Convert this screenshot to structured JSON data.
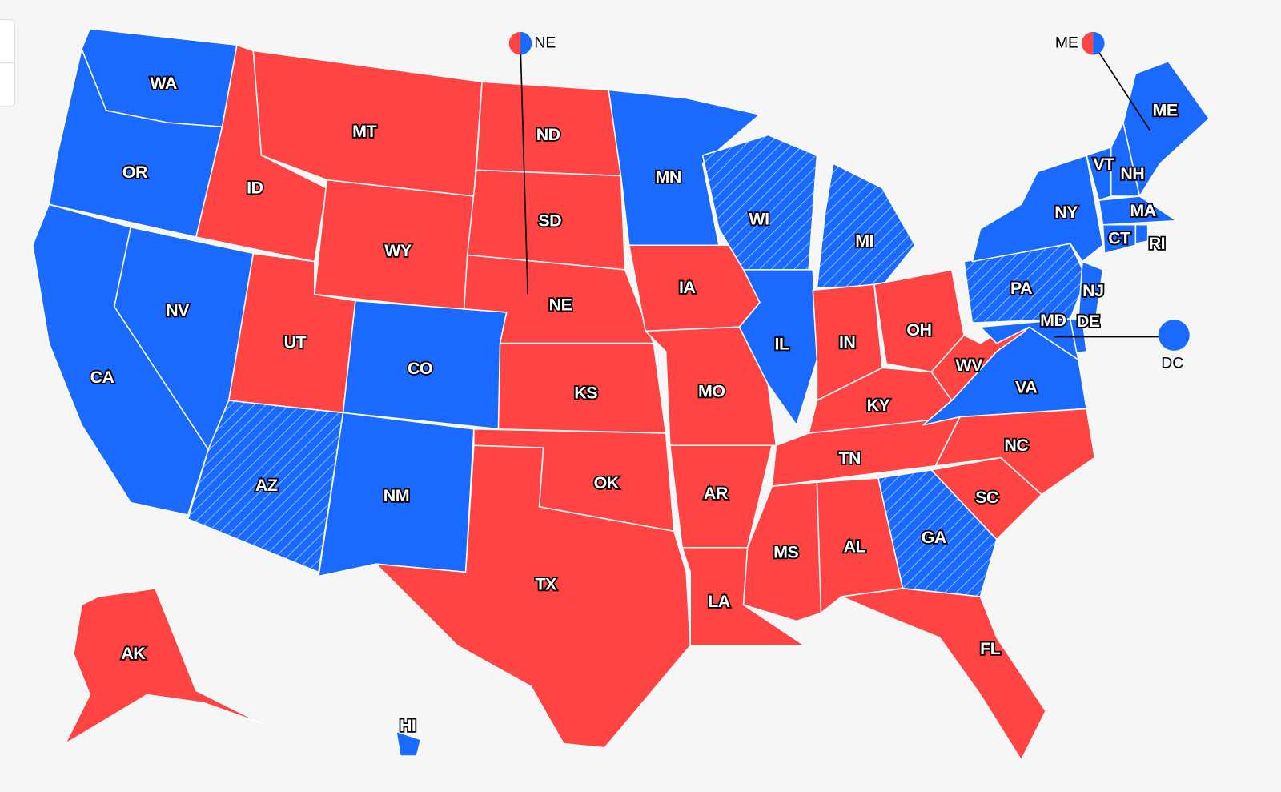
{
  "states": [
    {
      "label": "WA",
      "color": "#1a6aff",
      "hatched": false
    },
    {
      "label": "OR",
      "color": "#1a6aff",
      "hatched": false
    },
    {
      "label": "CA",
      "color": "#1a6aff",
      "hatched": false
    },
    {
      "label": "NV",
      "color": "#1a6aff",
      "hatched": false
    },
    {
      "label": "ID",
      "color": "#ff4444",
      "hatched": false
    },
    {
      "label": "MT",
      "color": "#ff4444",
      "hatched": false
    },
    {
      "label": "WY",
      "color": "#ff4444",
      "hatched": false
    },
    {
      "label": "UT",
      "color": "#ff4444",
      "hatched": false
    },
    {
      "label": "CO",
      "color": "#1a6aff",
      "hatched": false
    },
    {
      "label": "AZ",
      "color": "#1a6aff",
      "hatched": true
    },
    {
      "label": "NM",
      "color": "#1a6aff",
      "hatched": false
    },
    {
      "label": "ND",
      "color": "#ff4444",
      "hatched": false
    },
    {
      "label": "SD",
      "color": "#ff4444",
      "hatched": false
    },
    {
      "label": "NE",
      "color": "#ff4444",
      "hatched": false
    },
    {
      "label": "KS",
      "color": "#ff4444",
      "hatched": false
    },
    {
      "label": "OK",
      "color": "#ff4444",
      "hatched": false
    },
    {
      "label": "TX",
      "color": "#ff4444",
      "hatched": false
    },
    {
      "label": "MN",
      "color": "#1a6aff",
      "hatched": false
    },
    {
      "label": "IA",
      "color": "#ff4444",
      "hatched": false
    },
    {
      "label": "MO",
      "color": "#ff4444",
      "hatched": false
    },
    {
      "label": "AR",
      "color": "#ff4444",
      "hatched": false
    },
    {
      "label": "LA",
      "color": "#ff4444",
      "hatched": false
    },
    {
      "label": "WI",
      "color": "#1a6aff",
      "hatched": true
    },
    {
      "label": "IL",
      "color": "#1a6aff",
      "hatched": false
    },
    {
      "label": "MI",
      "color": "#1a6aff",
      "hatched": true
    },
    {
      "label": "IN",
      "color": "#ff4444",
      "hatched": false
    },
    {
      "label": "OH",
      "color": "#ff4444",
      "hatched": false
    },
    {
      "label": "KY",
      "color": "#ff4444",
      "hatched": false
    },
    {
      "label": "TN",
      "color": "#ff4444",
      "hatched": false
    },
    {
      "label": "MS",
      "color": "#ff4444",
      "hatched": false
    },
    {
      "label": "AL",
      "color": "#ff4444",
      "hatched": false
    },
    {
      "label": "GA",
      "color": "#1a6aff",
      "hatched": true
    },
    {
      "label": "FL",
      "color": "#ff4444",
      "hatched": false
    },
    {
      "label": "SC",
      "color": "#ff4444",
      "hatched": false
    },
    {
      "label": "NC",
      "color": "#ff4444",
      "hatched": false
    },
    {
      "label": "VA",
      "color": "#1a6aff",
      "hatched": false
    },
    {
      "label": "WV",
      "color": "#ff4444",
      "hatched": false
    },
    {
      "label": "PA",
      "color": "#1a6aff",
      "hatched": true
    },
    {
      "label": "NY",
      "color": "#1a6aff",
      "hatched": false
    },
    {
      "label": "NJ",
      "color": "#1a6aff",
      "hatched": false
    },
    {
      "label": "MD",
      "color": "#1a6aff",
      "hatched": false
    },
    {
      "label": "DE",
      "color": "#1a6aff",
      "hatched": false
    },
    {
      "label": "VT",
      "color": "#1a6aff",
      "hatched": false
    },
    {
      "label": "NH",
      "color": "#1a6aff",
      "hatched": false
    },
    {
      "label": "ME",
      "color": "#1a6aff",
      "hatched": false
    },
    {
      "label": "MA",
      "color": "#1a6aff",
      "hatched": false
    },
    {
      "label": "CT",
      "color": "#1a6aff",
      "hatched": false
    },
    {
      "label": "RI",
      "color": "#1a6aff",
      "hatched": false
    },
    {
      "label": "AK",
      "color": "#ff4444",
      "hatched": false
    },
    {
      "label": "HI",
      "color": "#1a6aff",
      "hatched": false
    }
  ],
  "split_markers": [
    {
      "label": "NE",
      "colors": [
        "#ff4444",
        "#1a6aff"
      ]
    },
    {
      "label": "ME",
      "colors": [
        "#ff4444",
        "#1a6aff"
      ]
    }
  ],
  "dc_marker": {
    "label": "DC",
    "color": "#1a6aff"
  }
}
